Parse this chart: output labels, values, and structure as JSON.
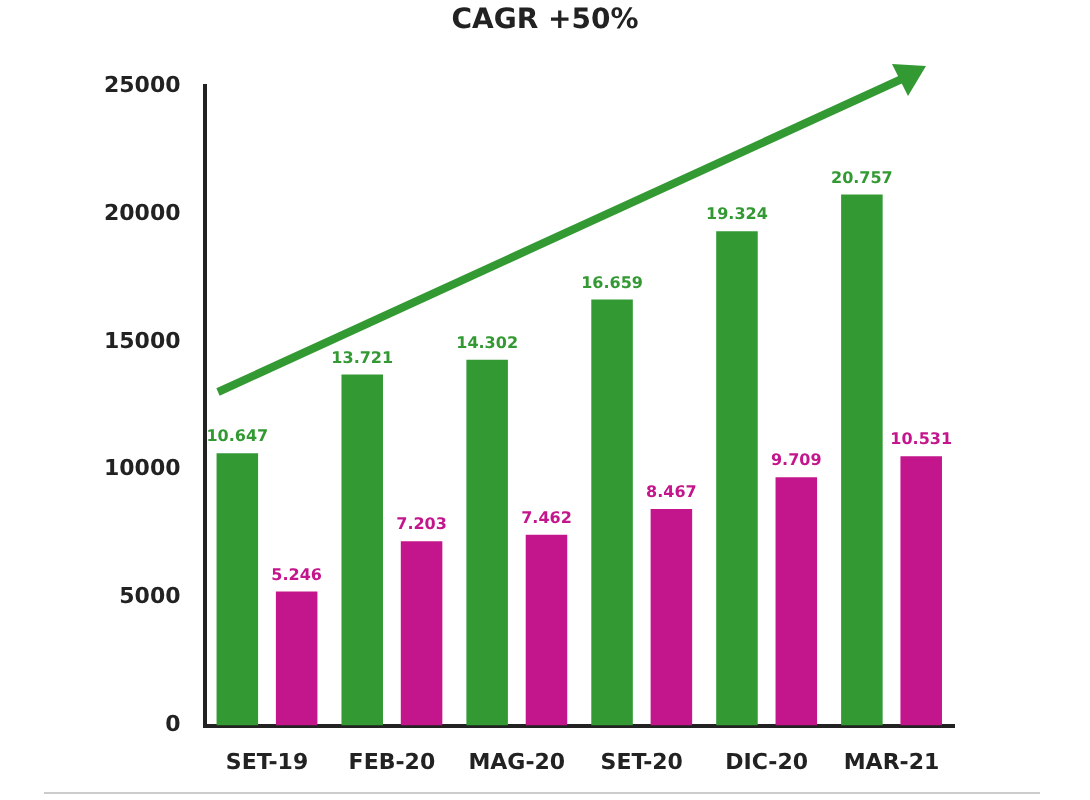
{
  "chart_data": {
    "type": "bar",
    "annotations": [
      "CAGR +50%"
    ],
    "categories": [
      "SET-19",
      "FEB-20",
      "MAG-20",
      "SET-20",
      "DIC-20",
      "MAR-21"
    ],
    "series": [
      {
        "color": "#339933",
        "values": [
          10647,
          13721,
          14302,
          16659,
          19324,
          20757
        ],
        "value_labels": [
          "10.647",
          "13.721",
          "14.302",
          "16.659",
          "19.324",
          "20.757"
        ]
      },
      {
        "color": "#c4168c",
        "values": [
          5246,
          7203,
          7462,
          8467,
          9709,
          10531
        ],
        "value_labels": [
          "5.246",
          "7.203",
          "7.462",
          "8.467",
          "9.709",
          "10.531"
        ]
      }
    ],
    "ylim": [
      0,
      25000
    ],
    "yticks": [
      0,
      5000,
      10000,
      15000,
      20000,
      25000
    ],
    "grid": false,
    "legend": false
  }
}
